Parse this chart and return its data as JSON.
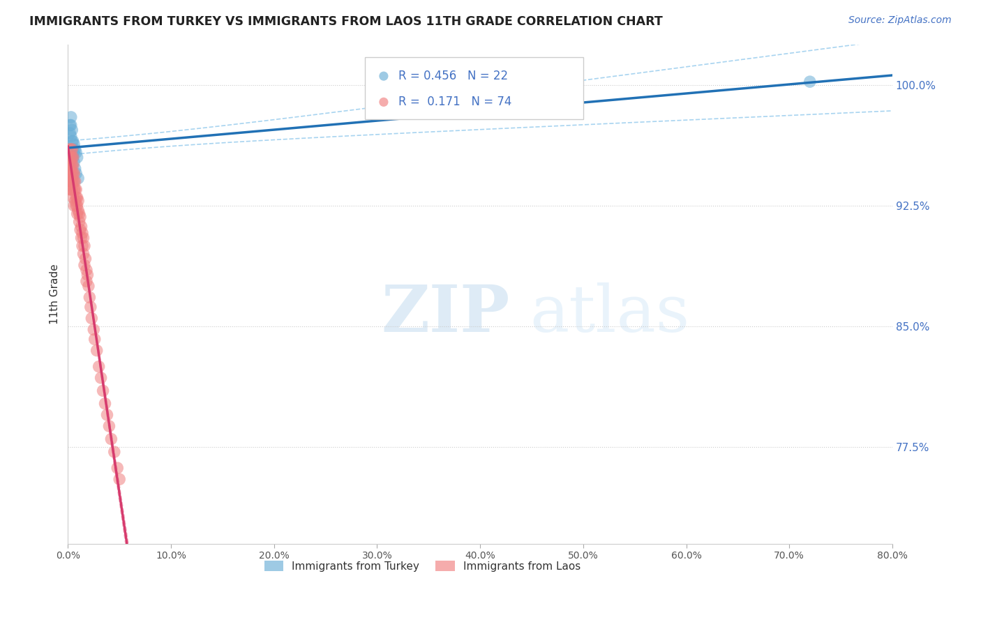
{
  "title": "IMMIGRANTS FROM TURKEY VS IMMIGRANTS FROM LAOS 11TH GRADE CORRELATION CHART",
  "source": "Source: ZipAtlas.com",
  "ylabel": "11th Grade",
  "ylabel_right_labels": [
    "100.0%",
    "92.5%",
    "85.0%",
    "77.5%"
  ],
  "ylabel_right_values": [
    1.0,
    0.925,
    0.85,
    0.775
  ],
  "legend_turkey": "Immigrants from Turkey",
  "legend_laos": "Immigrants from Laos",
  "R_turkey": 0.456,
  "N_turkey": 22,
  "R_laos": 0.171,
  "N_laos": 74,
  "color_turkey": "#6baed6",
  "color_laos": "#f08080",
  "color_turkey_line": "#2171b5",
  "color_laos_line": "#d63b6e",
  "color_turkey_ci": "#a8d4f0",
  "color_laos_ci": "#f5b8c8",
  "xlim": [
    0.0,
    0.8
  ],
  "ylim": [
    0.715,
    1.025
  ],
  "watermark_zip": "ZIP",
  "watermark_atlas": "atlas",
  "turkey_x": [
    0.002,
    0.002,
    0.003,
    0.003,
    0.003,
    0.004,
    0.004,
    0.004,
    0.004,
    0.005,
    0.005,
    0.005,
    0.006,
    0.006,
    0.006,
    0.007,
    0.007,
    0.008,
    0.008,
    0.009,
    0.01,
    0.72
  ],
  "turkey_y": [
    0.975,
    0.97,
    0.98,
    0.975,
    0.968,
    0.972,
    0.965,
    0.96,
    0.958,
    0.965,
    0.96,
    0.955,
    0.963,
    0.958,
    0.952,
    0.96,
    0.948,
    0.958,
    0.945,
    0.955,
    0.942,
    1.002
  ],
  "laos_x": [
    0.001,
    0.001,
    0.001,
    0.001,
    0.002,
    0.002,
    0.002,
    0.002,
    0.002,
    0.003,
    0.003,
    0.003,
    0.003,
    0.003,
    0.003,
    0.004,
    0.004,
    0.004,
    0.004,
    0.004,
    0.004,
    0.005,
    0.005,
    0.005,
    0.005,
    0.005,
    0.006,
    0.006,
    0.006,
    0.006,
    0.007,
    0.007,
    0.007,
    0.008,
    0.008,
    0.008,
    0.009,
    0.009,
    0.009,
    0.01,
    0.01,
    0.011,
    0.011,
    0.012,
    0.012,
    0.013,
    0.013,
    0.014,
    0.014,
    0.015,
    0.015,
    0.016,
    0.016,
    0.017,
    0.018,
    0.018,
    0.019,
    0.02,
    0.021,
    0.022,
    0.023,
    0.025,
    0.026,
    0.028,
    0.03,
    0.032,
    0.034,
    0.036,
    0.038,
    0.04,
    0.042,
    0.045,
    0.048,
    0.05
  ],
  "laos_y": [
    0.96,
    0.955,
    0.95,
    0.945,
    0.955,
    0.95,
    0.945,
    0.94,
    0.935,
    0.96,
    0.955,
    0.95,
    0.945,
    0.94,
    0.935,
    0.96,
    0.955,
    0.95,
    0.945,
    0.94,
    0.935,
    0.955,
    0.95,
    0.945,
    0.94,
    0.93,
    0.945,
    0.94,
    0.935,
    0.925,
    0.94,
    0.935,
    0.928,
    0.935,
    0.93,
    0.925,
    0.93,
    0.925,
    0.92,
    0.928,
    0.922,
    0.92,
    0.915,
    0.918,
    0.91,
    0.912,
    0.905,
    0.908,
    0.9,
    0.905,
    0.895,
    0.9,
    0.888,
    0.892,
    0.885,
    0.878,
    0.882,
    0.875,
    0.868,
    0.862,
    0.855,
    0.848,
    0.842,
    0.835,
    0.825,
    0.818,
    0.81,
    0.802,
    0.795,
    0.788,
    0.78,
    0.772,
    0.762,
    0.755
  ],
  "x_ticks": [
    0.0,
    0.1,
    0.2,
    0.3,
    0.4,
    0.5,
    0.6,
    0.7,
    0.8
  ],
  "x_tick_labels": [
    "0.0%",
    "10.0%",
    "20.0%",
    "30.0%",
    "40.0%",
    "50.0%",
    "60.0%",
    "70.0%",
    "80.0%"
  ]
}
